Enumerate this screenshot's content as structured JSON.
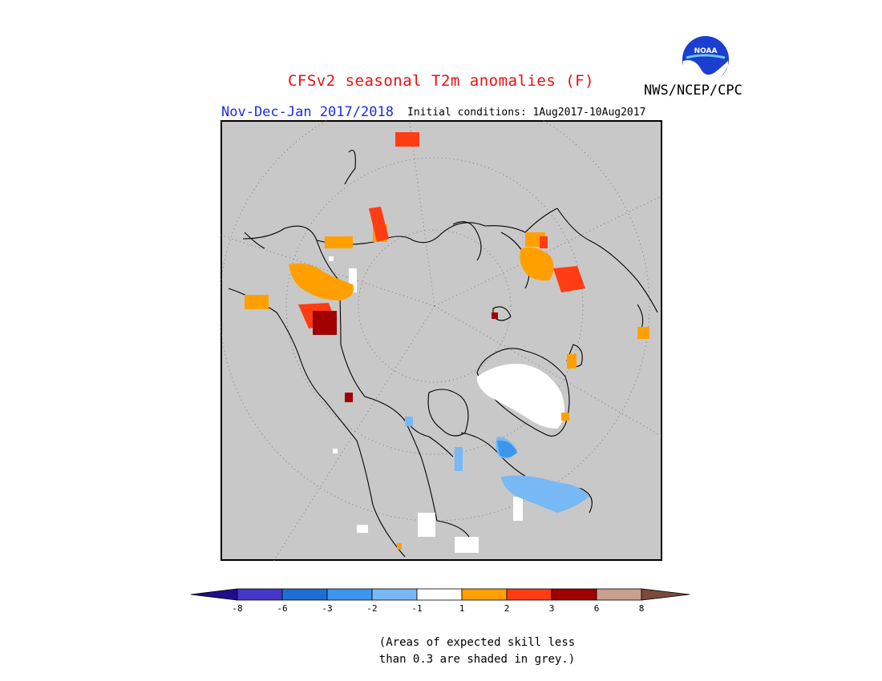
{
  "header": {
    "title": "CFSv2 seasonal T2m anomalies (F)",
    "agency": "NWS/NCEP/CPC",
    "season": "Nov-Dec-Jan 2017/2018",
    "initial_conditions": "Initial conditions: 1Aug2017-10Aug2017",
    "logo_text": "NOAA"
  },
  "map": {
    "projection": "north-polar-stereographic",
    "background_color": "#c8c8c8",
    "land_outline_color": "#000000",
    "grid": "dotted latitude/longitude circles"
  },
  "legend": {
    "ticks": [
      "-8",
      "-6",
      "-3",
      "-2",
      "-1",
      "1",
      "2",
      "3",
      "6",
      "8"
    ],
    "colors": [
      "#1e0f8c",
      "#4438c8",
      "#1e6ed2",
      "#3c96ec",
      "#78b8f4",
      "#ffffff",
      "#ffa000",
      "#ff3c14",
      "#a00000",
      "#c8a090",
      "#7a4a3a"
    ]
  },
  "footnote": {
    "line1": "(Areas of expected skill less",
    "line2": "than 0.3 are shaded in grey.)"
  }
}
